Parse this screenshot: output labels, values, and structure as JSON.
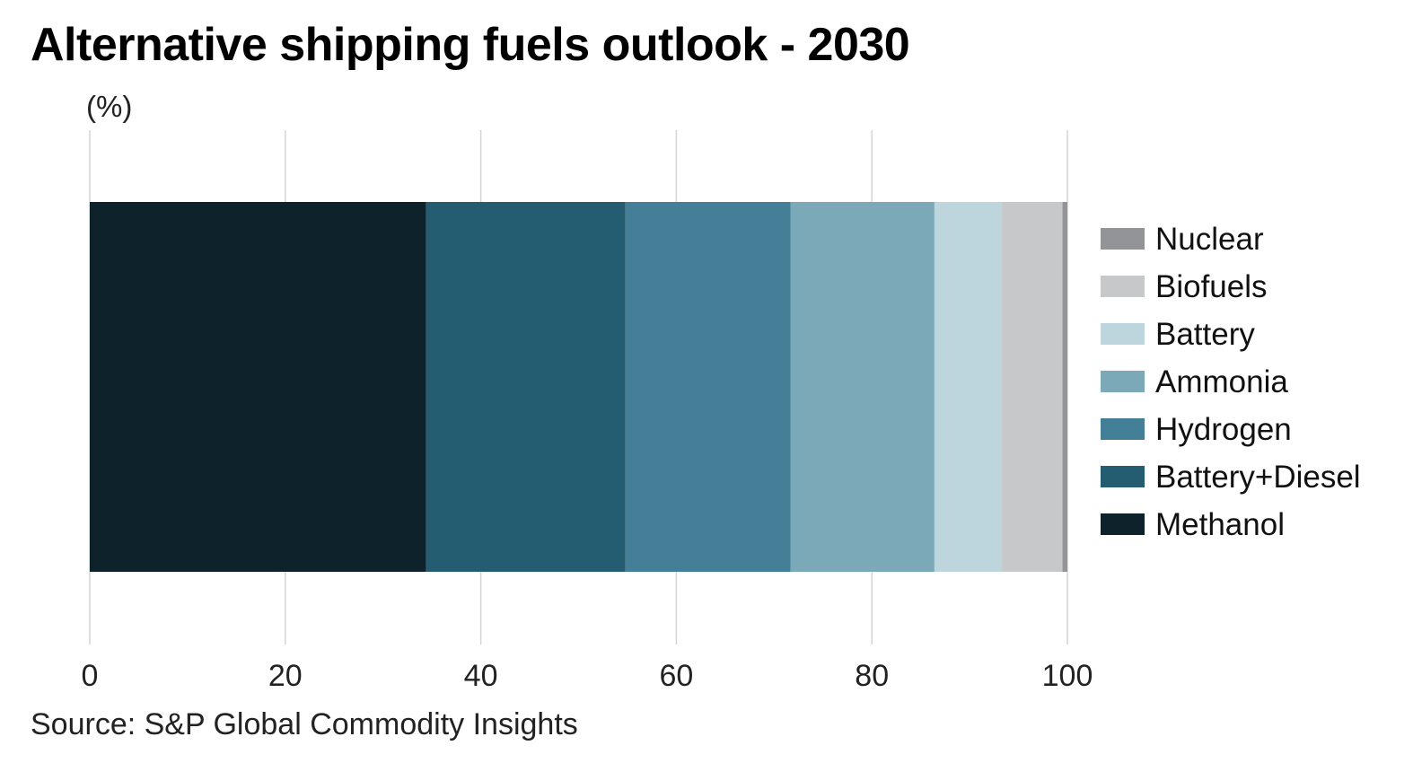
{
  "chart_data": {
    "type": "bar",
    "orientation": "horizontal-stacked",
    "title": "Alternative shipping fuels outlook - 2030",
    "unit_label": "(%)",
    "xlim": [
      0,
      100
    ],
    "x_ticks": [
      "0",
      "20",
      "40",
      "60",
      "80",
      "100"
    ],
    "grid": true,
    "legend_position": "right",
    "series": [
      {
        "name": "Methanol",
        "value": 34.4,
        "color": "#0d222b"
      },
      {
        "name": "Battery+Diesel",
        "value": 20.4,
        "color": "#245c71"
      },
      {
        "name": "Hydrogen",
        "value": 16.9,
        "color": "#437f96"
      },
      {
        "name": "Ammonia",
        "value": 14.7,
        "color": "#7ca9b8"
      },
      {
        "name": "Battery",
        "value": 6.9,
        "color": "#bdd5dc"
      },
      {
        "name": "Biofuels",
        "value": 6.2,
        "color": "#c7c8ca"
      },
      {
        "name": "Nuclear",
        "value": 0.5,
        "color": "#929497"
      }
    ],
    "legend_order": [
      "Nuclear",
      "Biofuels",
      "Battery",
      "Ammonia",
      "Hydrogen",
      "Battery+Diesel",
      "Methanol"
    ],
    "source": "Source: S&P Global Commodity Insights"
  }
}
